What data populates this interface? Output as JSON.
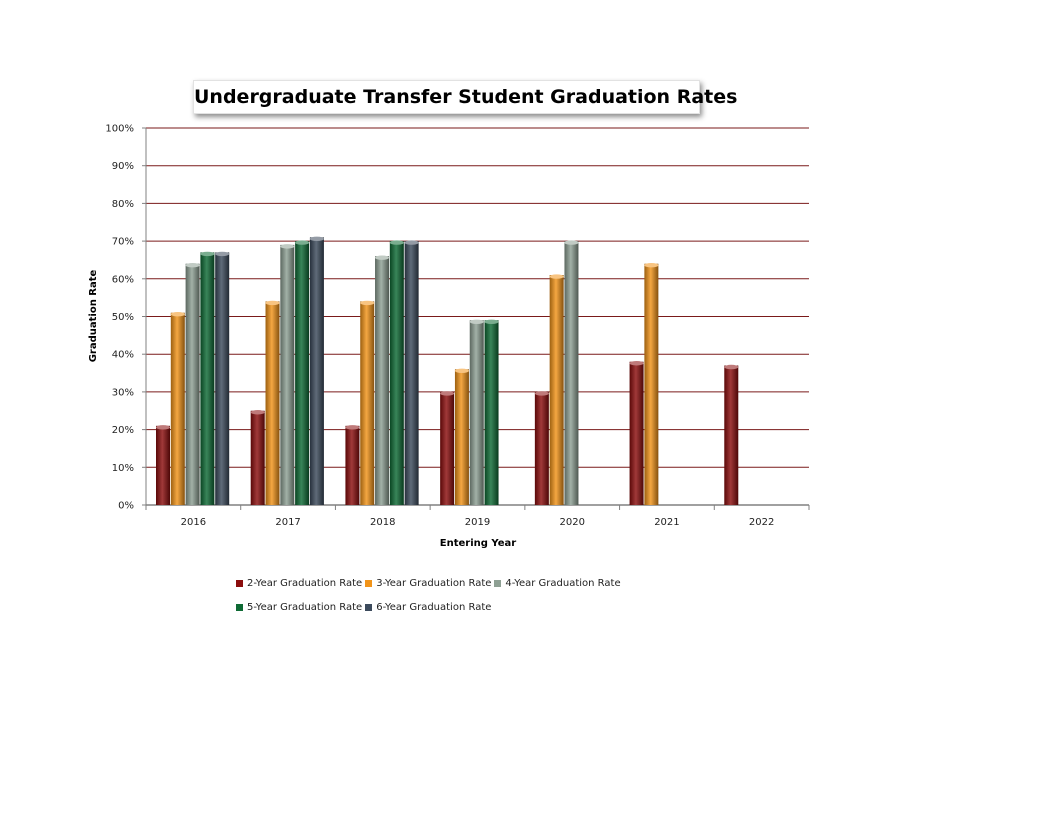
{
  "chart_data": {
    "type": "bar",
    "title": "Undergraduate Transfer Student Graduation Rates",
    "xlabel": "Entering Year",
    "ylabel": "Graduation Rate",
    "categories": [
      "2016",
      "2017",
      "2018",
      "2019",
      "2020",
      "2021",
      "2022"
    ],
    "y_ticks": [
      "0%",
      "10%",
      "20%",
      "30%",
      "40%",
      "50%",
      "60%",
      "70%",
      "80%",
      "90%",
      "100%"
    ],
    "ylim": [
      0,
      100
    ],
    "grid": true,
    "legend_position": "bottom",
    "series": [
      {
        "name": "2-Year Graduation Rate",
        "color": "#8b0d0d",
        "values": [
          21,
          25,
          21,
          30,
          30,
          38,
          37
        ]
      },
      {
        "name": "3-Year Graduation Rate",
        "color": "#f29419",
        "values": [
          51,
          54,
          54,
          36,
          61,
          64,
          null
        ]
      },
      {
        "name": "4-Year Graduation Rate",
        "color": "#8ea094",
        "values": [
          64,
          69,
          66,
          49,
          70,
          null,
          null
        ]
      },
      {
        "name": "5-Year Graduation Rate",
        "color": "#0e6a34",
        "values": [
          67,
          70,
          70,
          49,
          null,
          null,
          null
        ]
      },
      {
        "name": "6-Year Graduation Rate",
        "color": "#3c4a5c",
        "values": [
          67,
          71,
          70,
          null,
          null,
          null,
          null
        ]
      }
    ]
  }
}
